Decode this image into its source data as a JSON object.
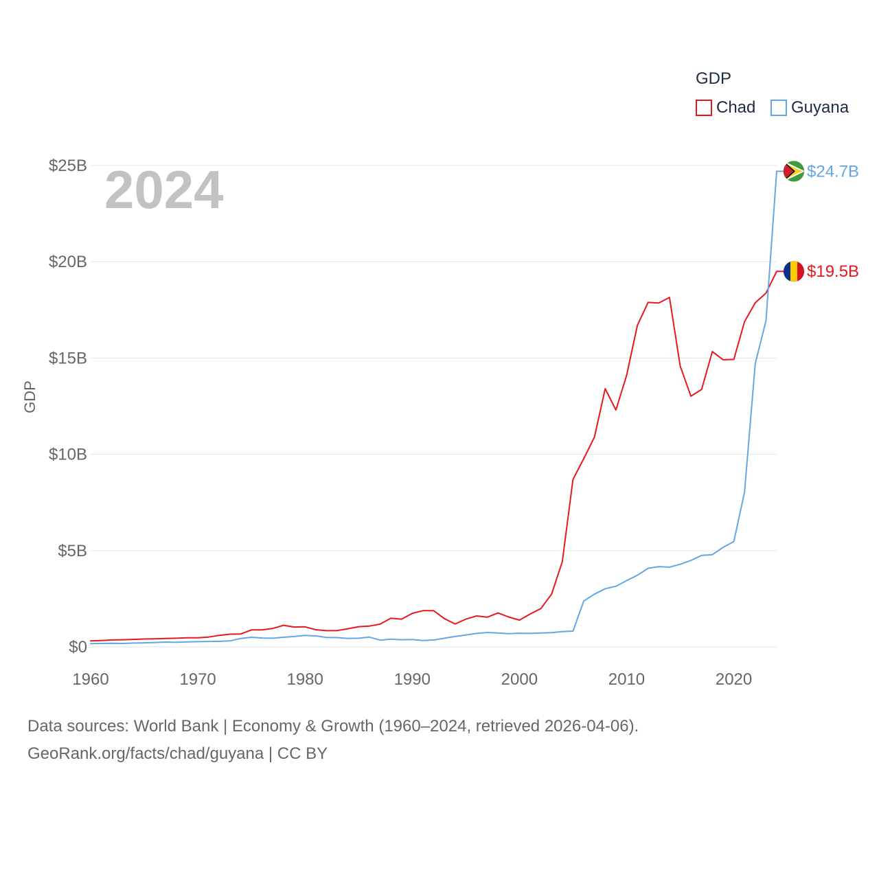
{
  "chart_data": {
    "type": "line",
    "year_label": "2024",
    "ylabel": "GDP",
    "xlim": [
      1960,
      2024
    ],
    "ylim": [
      0,
      25
    ],
    "grid": true,
    "legend": {
      "title": "GDP",
      "placement": "top-right"
    },
    "x_ticks": {
      "values": [
        1960,
        1970,
        1980,
        1990,
        2000,
        2010,
        2020
      ],
      "labels": [
        "1960",
        "1970",
        "1980",
        "1990",
        "2000",
        "2010",
        "2020"
      ]
    },
    "y_ticks": {
      "values": [
        0,
        5,
        10,
        15,
        20,
        25
      ],
      "labels": [
        "$0",
        "$5B",
        "$10B",
        "$15B",
        "$20B",
        "$25B"
      ]
    },
    "x": [
      1960,
      1961,
      1962,
      1963,
      1964,
      1965,
      1966,
      1967,
      1968,
      1969,
      1970,
      1971,
      1972,
      1973,
      1974,
      1975,
      1976,
      1977,
      1978,
      1979,
      1980,
      1981,
      1982,
      1983,
      1984,
      1985,
      1986,
      1987,
      1988,
      1989,
      1990,
      1991,
      1992,
      1993,
      1994,
      1995,
      1996,
      1997,
      1998,
      1999,
      2000,
      2001,
      2002,
      2003,
      2004,
      2005,
      2006,
      2007,
      2008,
      2009,
      2010,
      2011,
      2012,
      2013,
      2014,
      2015,
      2016,
      2017,
      2018,
      2019,
      2020,
      2021,
      2022,
      2023,
      2024
    ],
    "series": [
      {
        "name": "Chad",
        "color": "#e8161d",
        "flag_icon": "chad-flag-icon",
        "end_label": "$19.5B",
        "values": [
          0.31,
          0.33,
          0.36,
          0.37,
          0.39,
          0.41,
          0.42,
          0.44,
          0.45,
          0.47,
          0.47,
          0.51,
          0.6,
          0.66,
          0.67,
          0.88,
          0.88,
          0.96,
          1.12,
          1.03,
          1.04,
          0.89,
          0.84,
          0.85,
          0.94,
          1.05,
          1.08,
          1.18,
          1.49,
          1.44,
          1.74,
          1.88,
          1.88,
          1.47,
          1.19,
          1.44,
          1.61,
          1.54,
          1.76,
          1.55,
          1.39,
          1.71,
          1.99,
          2.74,
          4.42,
          8.7,
          9.77,
          10.89,
          13.41,
          12.3,
          14.1,
          16.69,
          17.89,
          17.86,
          18.15,
          14.59,
          13.02,
          13.37,
          15.34,
          14.91,
          14.93,
          16.89,
          17.87,
          18.37,
          19.5
        ]
      },
      {
        "name": "Guyana",
        "color": "#62a6e6",
        "flag_icon": "guyana-flag-icon",
        "end_label": "$24.7B",
        "values": [
          0.17,
          0.18,
          0.19,
          0.18,
          0.2,
          0.21,
          0.23,
          0.25,
          0.24,
          0.26,
          0.27,
          0.28,
          0.29,
          0.31,
          0.44,
          0.5,
          0.46,
          0.45,
          0.5,
          0.54,
          0.6,
          0.57,
          0.49,
          0.48,
          0.44,
          0.45,
          0.51,
          0.35,
          0.4,
          0.37,
          0.38,
          0.33,
          0.36,
          0.45,
          0.54,
          0.62,
          0.7,
          0.75,
          0.72,
          0.69,
          0.71,
          0.7,
          0.72,
          0.74,
          0.79,
          0.82,
          2.38,
          2.74,
          3.02,
          3.15,
          3.44,
          3.72,
          4.08,
          4.17,
          4.14,
          4.29,
          4.49,
          4.75,
          4.79,
          5.17,
          5.47,
          8.04,
          14.72,
          16.93,
          24.7
        ]
      }
    ]
  },
  "footer": {
    "sources": "Data sources: World Bank | Economy & Growth (1960–2024, retrieved 2026-04-06).",
    "attribution": "GeoRank.org/facts/chad/guyana | CC BY"
  }
}
